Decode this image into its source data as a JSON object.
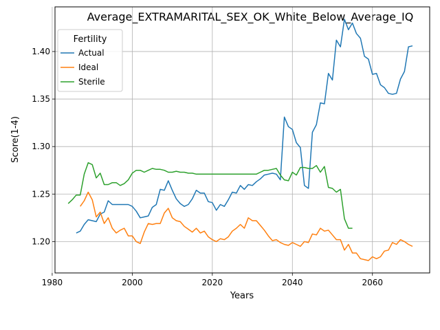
{
  "chart_data": {
    "type": "line",
    "title": "Average_EXTRAMARITAL_SEX_OK_White_Below_Average_IQ",
    "xlabel": "Years",
    "ylabel": "Score(1-4)",
    "xlim": [
      1980.7,
      2074.3
    ],
    "ylim": [
      1.167,
      1.447
    ],
    "xticks": [
      1980,
      2000,
      2020,
      2040,
      2060
    ],
    "yticks": [
      1.2,
      1.25,
      1.3,
      1.35,
      1.4
    ],
    "xtick_labels": [
      "1980",
      "2000",
      "2020",
      "2040",
      "2060"
    ],
    "ytick_labels": [
      "1.20",
      "1.25",
      "1.30",
      "1.35",
      "1.40"
    ],
    "grid": true,
    "legend": {
      "title": "Fertility",
      "position": "top-left"
    },
    "series": [
      {
        "name": "Actual",
        "color": "#1f77b4",
        "x": [
          1986,
          1987,
          1988,
          1989,
          1990,
          1991,
          1992,
          1993,
          1994,
          1995,
          1996,
          1997,
          1998,
          1999,
          2000,
          2001,
          2002,
          2003,
          2004,
          2005,
          2006,
          2007,
          2008,
          2009,
          2010,
          2011,
          2012,
          2013,
          2014,
          2015,
          2016,
          2017,
          2018,
          2019,
          2020,
          2021,
          2022,
          2023,
          2024,
          2025,
          2026,
          2027,
          2028,
          2029,
          2030,
          2031,
          2032,
          2033,
          2034,
          2035,
          2036,
          2037,
          2038,
          2039,
          2040,
          2041,
          2042,
          2043,
          2044,
          2045,
          2046,
          2047,
          2048,
          2049,
          2050,
          2051,
          2052,
          2053,
          2054,
          2055,
          2056,
          2057,
          2058,
          2059,
          2060,
          2061,
          2062,
          2063,
          2064,
          2065,
          2066,
          2067,
          2068,
          2069,
          2070
        ],
        "y": [
          1.209,
          1.211,
          1.218,
          1.223,
          1.222,
          1.221,
          1.229,
          1.231,
          1.243,
          1.239,
          1.239,
          1.239,
          1.239,
          1.239,
          1.237,
          1.232,
          1.225,
          1.226,
          1.227,
          1.236,
          1.239,
          1.255,
          1.254,
          1.264,
          1.254,
          1.245,
          1.24,
          1.237,
          1.239,
          1.245,
          1.254,
          1.251,
          1.251,
          1.242,
          1.241,
          1.233,
          1.239,
          1.237,
          1.244,
          1.252,
          1.251,
          1.259,
          1.255,
          1.26,
          1.259,
          1.263,
          1.266,
          1.27,
          1.271,
          1.272,
          1.271,
          1.265,
          1.331,
          1.321,
          1.318,
          1.304,
          1.299,
          1.259,
          1.256,
          1.315,
          1.323,
          1.346,
          1.345,
          1.377,
          1.37,
          1.412,
          1.405,
          1.434,
          1.423,
          1.43,
          1.419,
          1.414,
          1.395,
          1.392,
          1.376,
          1.377,
          1.365,
          1.362,
          1.356,
          1.355,
          1.356,
          1.371,
          1.379,
          1.405,
          1.406
        ]
      },
      {
        "name": "Ideal",
        "color": "#ff7f0e",
        "x": [
          1987,
          1988,
          1989,
          1990,
          1991,
          1992,
          1993,
          1994,
          1995,
          1996,
          1997,
          1998,
          1999,
          2000,
          2001,
          2002,
          2003,
          2004,
          2005,
          2006,
          2007,
          2008,
          2009,
          2010,
          2011,
          2012,
          2013,
          2014,
          2015,
          2016,
          2017,
          2018,
          2019,
          2020,
          2021,
          2022,
          2023,
          2024,
          2025,
          2026,
          2027,
          2028,
          2029,
          2030,
          2031,
          2032,
          2033,
          2034,
          2035,
          2036,
          2037,
          2038,
          2039,
          2040,
          2041,
          2042,
          2043,
          2044,
          2045,
          2046,
          2047,
          2048,
          2049,
          2050,
          2051,
          2052,
          2053,
          2054,
          2055,
          2056,
          2057,
          2058,
          2059,
          2060,
          2061,
          2062,
          2063,
          2064,
          2065,
          2066,
          2067,
          2068,
          2069,
          2070
        ],
        "y": [
          1.237,
          1.243,
          1.252,
          1.244,
          1.226,
          1.231,
          1.219,
          1.225,
          1.214,
          1.209,
          1.212,
          1.214,
          1.206,
          1.206,
          1.2,
          1.198,
          1.21,
          1.219,
          1.218,
          1.219,
          1.219,
          1.23,
          1.235,
          1.225,
          1.222,
          1.221,
          1.216,
          1.213,
          1.21,
          1.214,
          1.209,
          1.211,
          1.205,
          1.202,
          1.2,
          1.203,
          1.202,
          1.205,
          1.211,
          1.214,
          1.218,
          1.214,
          1.225,
          1.222,
          1.222,
          1.217,
          1.212,
          1.206,
          1.201,
          1.202,
          1.199,
          1.197,
          1.196,
          1.199,
          1.197,
          1.195,
          1.2,
          1.199,
          1.208,
          1.207,
          1.214,
          1.211,
          1.212,
          1.207,
          1.202,
          1.202,
          1.191,
          1.197,
          1.188,
          1.188,
          1.182,
          1.181,
          1.18,
          1.184,
          1.182,
          1.184,
          1.19,
          1.191,
          1.199,
          1.197,
          1.202,
          1.2,
          1.197,
          1.195
        ]
      },
      {
        "name": "Sterile",
        "color": "#2ca02c",
        "x": [
          1984,
          1985,
          1986,
          1987,
          1988,
          1989,
          1990,
          1991,
          1992,
          1993,
          1994,
          1995,
          1996,
          1997,
          1998,
          1999,
          2000,
          2001,
          2002,
          2003,
          2004,
          2005,
          2006,
          2007,
          2008,
          2009,
          2010,
          2011,
          2012,
          2013,
          2014,
          2015,
          2016,
          2017,
          2018,
          2019,
          2020,
          2021,
          2022,
          2023,
          2024,
          2025,
          2026,
          2027,
          2028,
          2029,
          2030,
          2031,
          2032,
          2033,
          2034,
          2035,
          2036,
          2037,
          2038,
          2039,
          2040,
          2041,
          2042,
          2043,
          2044,
          2045,
          2046,
          2047,
          2048,
          2049,
          2050,
          2051,
          2052,
          2053,
          2054,
          2055
        ],
        "y": [
          1.24,
          1.244,
          1.249,
          1.249,
          1.271,
          1.283,
          1.281,
          1.267,
          1.272,
          1.26,
          1.26,
          1.262,
          1.262,
          1.259,
          1.261,
          1.265,
          1.272,
          1.275,
          1.275,
          1.273,
          1.275,
          1.277,
          1.276,
          1.276,
          1.275,
          1.273,
          1.273,
          1.274,
          1.273,
          1.273,
          1.272,
          1.272,
          1.271,
          1.271,
          1.271,
          1.271,
          1.271,
          1.271,
          1.271,
          1.271,
          1.271,
          1.271,
          1.271,
          1.271,
          1.271,
          1.271,
          1.271,
          1.271,
          1.273,
          1.275,
          1.275,
          1.276,
          1.277,
          1.27,
          1.265,
          1.264,
          1.273,
          1.27,
          1.278,
          1.278,
          1.277,
          1.277,
          1.28,
          1.273,
          1.279,
          1.257,
          1.256,
          1.252,
          1.255,
          1.224,
          1.214,
          1.214
        ]
      }
    ]
  }
}
